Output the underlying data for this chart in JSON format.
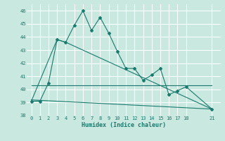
{
  "xlabel": "Humidex (Indice chaleur)",
  "bg_color": "#c8e8e0",
  "line_color": "#1a7a6e",
  "grid_color": "#ffffff",
  "ylim": [
    38,
    46.5
  ],
  "xlim": [
    -0.5,
    22
  ],
  "yticks": [
    38,
    39,
    40,
    41,
    42,
    43,
    44,
    45,
    46
  ],
  "xticks": [
    0,
    1,
    2,
    3,
    4,
    5,
    6,
    7,
    8,
    9,
    10,
    11,
    12,
    13,
    14,
    15,
    16,
    17,
    18,
    21
  ],
  "series": [
    {
      "x": [
        0,
        1,
        2,
        3,
        4,
        5,
        6,
        7,
        8,
        9,
        10,
        11,
        12,
        13,
        14,
        15,
        16,
        17,
        18,
        21
      ],
      "y": [
        39.1,
        39.1,
        40.5,
        43.8,
        43.6,
        44.9,
        46.0,
        44.5,
        45.5,
        44.3,
        42.9,
        41.6,
        41.6,
        40.7,
        41.1,
        41.6,
        39.6,
        39.9,
        40.2,
        38.5
      ],
      "marker": "D",
      "markersize": 2.0,
      "linewidth": 0.8
    },
    {
      "x": [
        0,
        3,
        4,
        21
      ],
      "y": [
        39.1,
        43.8,
        43.6,
        38.5
      ],
      "marker": null,
      "markersize": 0,
      "linewidth": 0.8
    },
    {
      "x": [
        0,
        21
      ],
      "y": [
        40.3,
        40.3
      ],
      "marker": null,
      "markersize": 0,
      "linewidth": 0.8
    },
    {
      "x": [
        0,
        21
      ],
      "y": [
        39.2,
        38.5
      ],
      "marker": null,
      "markersize": 0,
      "linewidth": 0.8
    }
  ]
}
